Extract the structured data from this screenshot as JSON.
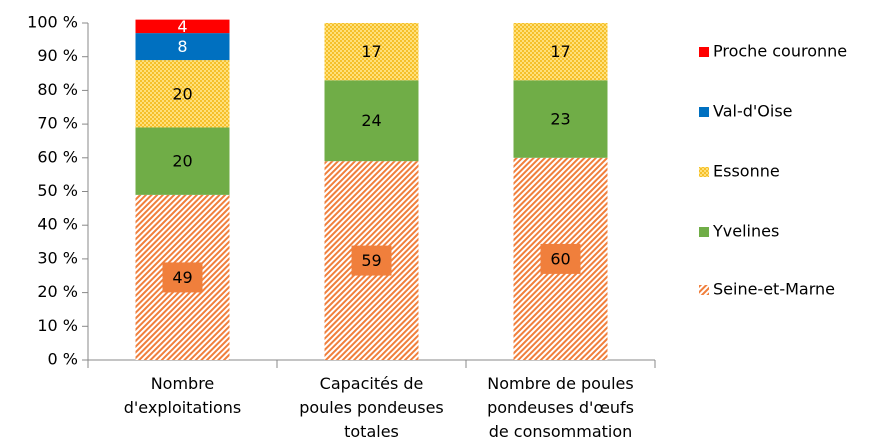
{
  "chart_data": {
    "type": "stacked_bar_100",
    "categories": [
      "Nombre\nd'exploitations",
      "Capacités de\npoules pondeuses\ntotales",
      "Nombre de poules\npondeuses d'œufs\nde consommation"
    ],
    "series": [
      {
        "name": "Seine-et-Marne",
        "color": "#f07f3c",
        "pattern": "hatch",
        "values": [
          49,
          59,
          60
        ]
      },
      {
        "name": "Yvelines",
        "color": "#70ad47",
        "pattern": "solid",
        "values": [
          20,
          24,
          23
        ]
      },
      {
        "name": "Essonne",
        "color": "#ffd34d",
        "pattern": "dots",
        "values": [
          20,
          17,
          17
        ]
      },
      {
        "name": "Val-d'Oise",
        "color": "#0070c0",
        "pattern": "solid",
        "values": [
          8,
          0,
          0
        ]
      },
      {
        "name": "Proche couronne",
        "color": "#ff0000",
        "pattern": "solid",
        "values": [
          4,
          0,
          0
        ]
      }
    ],
    "ylim": [
      0,
      100
    ],
    "yticks": [
      {
        "value": 0,
        "label": "0 %"
      },
      {
        "value": 10,
        "label": "10 %"
      },
      {
        "value": 20,
        "label": "20 %"
      },
      {
        "value": 30,
        "label": "30 %"
      },
      {
        "value": 40,
        "label": "40 %"
      },
      {
        "value": 50,
        "label": "50 %"
      },
      {
        "value": 60,
        "label": "60 %"
      },
      {
        "value": 70,
        "label": "70 %"
      },
      {
        "value": 80,
        "label": "80 %"
      },
      {
        "value": 90,
        "label": "90 %"
      },
      {
        "value": 100,
        "label": "100 %"
      }
    ],
    "legend": "right"
  }
}
